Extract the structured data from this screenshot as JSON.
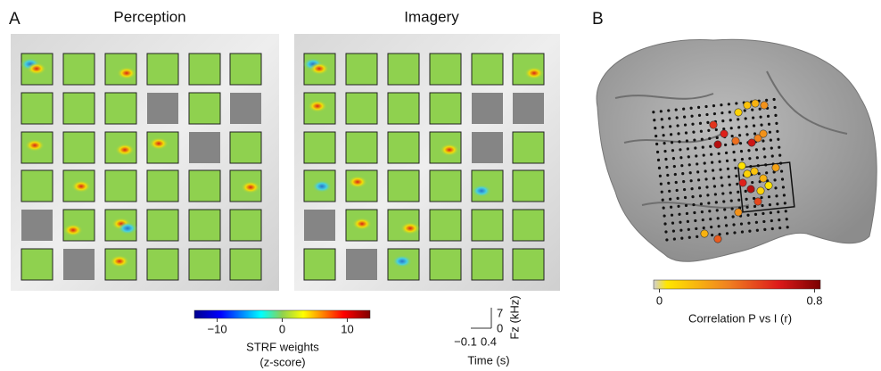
{
  "panel_a": {
    "letter": "A",
    "titles": [
      "Perception",
      "Imagery"
    ],
    "colorbar": {
      "lim": [
        -13.5,
        13.5
      ],
      "ticks": [
        {
          "value": -10,
          "label": "−10"
        },
        0,
        10
      ],
      "label": [
        "STRF weights",
        "(z-score)"
      ]
    },
    "scale_bar": {
      "freq_ticks": [
        7,
        0
      ],
      "freq_label": "Fz (kHz)",
      "time_ticks": [
        {
          "value": -0.1,
          "label": "−0.1"
        },
        0.4
      ],
      "time_label": "Time (s)"
    }
  },
  "panel_b": {
    "letter": "B",
    "colorbar": {
      "lim": [
        -0.03,
        0.83
      ],
      "ticks": [
        0,
        0.8
      ],
      "label": "Correlation P vs I (r)"
    },
    "electrodes_r": [
      0.15,
      0.2,
      0.3,
      0.1,
      0.55,
      0.6,
      0.7,
      0.4,
      0.35,
      0.65,
      0.3,
      0.05,
      0.1,
      0.15,
      0.2,
      0.6,
      0.7,
      0.1,
      0.05,
      0.5,
      0.3,
      0.2,
      0.45,
      0.25
    ]
  }
}
